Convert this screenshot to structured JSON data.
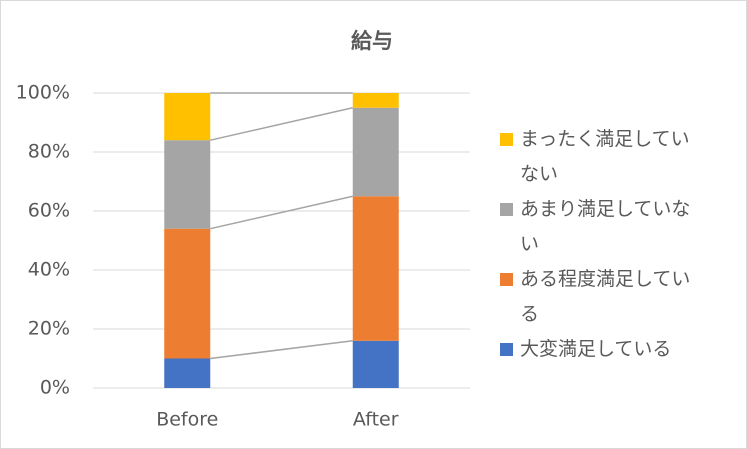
{
  "chart_data": {
    "type": "stacked_bar",
    "title": "給与",
    "categories": [
      "Before",
      "After"
    ],
    "series": [
      {
        "name": "大変満足している",
        "color": "#4472c4",
        "values": [
          10,
          16
        ]
      },
      {
        "name": "ある程度満足している",
        "color": "#ed7d31",
        "values": [
          44,
          49
        ]
      },
      {
        "name": "あまり満足していない",
        "color": "#a5a5a5",
        "values": [
          30,
          30
        ]
      },
      {
        "name": "まったく満足していない",
        "color": "#ffc000",
        "values": [
          16,
          5
        ]
      }
    ],
    "ylim": [
      0,
      100
    ],
    "yticks": [
      {
        "value": 0,
        "label": "0%"
      },
      {
        "value": 20,
        "label": "20%"
      },
      {
        "value": 40,
        "label": "40%"
      },
      {
        "value": 60,
        "label": "60%"
      },
      {
        "value": 80,
        "label": "80%"
      },
      {
        "value": 100,
        "label": "100%"
      }
    ],
    "grid": true,
    "legend": "right",
    "series_lines": true
  }
}
